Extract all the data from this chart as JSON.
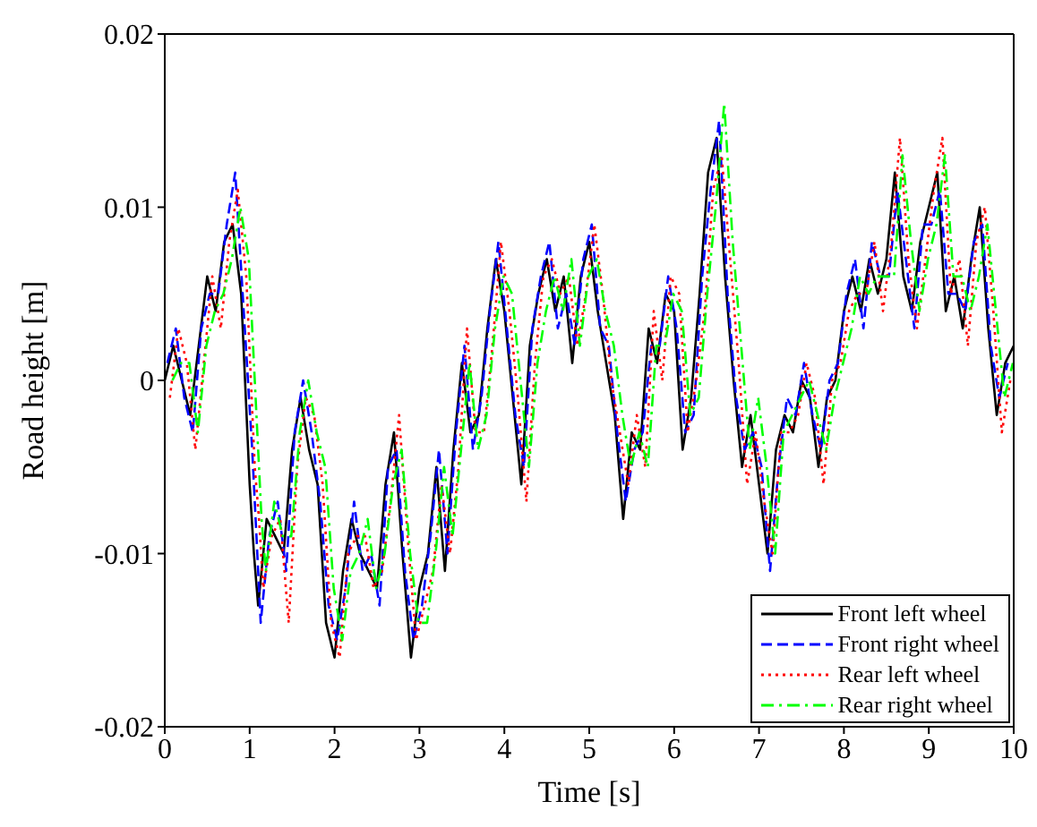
{
  "chart_data": {
    "type": "line",
    "xlabel": "Time [s]",
    "ylabel": "Road height [m]",
    "xlim": [
      0,
      10
    ],
    "xticks": [
      0,
      1,
      2,
      3,
      4,
      5,
      6,
      7,
      8,
      9,
      10
    ],
    "ylim": [
      -0.02,
      0.02
    ],
    "yticks": [
      -0.02,
      -0.01,
      0,
      0.01,
      0.02
    ],
    "grid": false,
    "legend": "bottom right",
    "marker": "none",
    "series": [
      {
        "name": "Front left wheel",
        "color": "#000000",
        "line_style": "solid",
        "x": [
          0,
          0.1,
          0.2,
          0.3,
          0.4,
          0.5,
          0.6,
          0.7,
          0.8,
          0.9,
          1.0,
          1.05,
          1.1,
          1.2,
          1.3,
          1.4,
          1.5,
          1.6,
          1.7,
          1.8,
          1.9,
          2.0,
          2.1,
          2.2,
          2.3,
          2.4,
          2.5,
          2.6,
          2.7,
          2.8,
          2.9,
          3.0,
          3.1,
          3.2,
          3.3,
          3.4,
          3.5,
          3.6,
          3.7,
          3.8,
          3.9,
          4.0,
          4.1,
          4.2,
          4.3,
          4.4,
          4.5,
          4.6,
          4.7,
          4.8,
          4.9,
          5.0,
          5.1,
          5.2,
          5.3,
          5.4,
          5.5,
          5.6,
          5.7,
          5.8,
          5.9,
          6.0,
          6.1,
          6.2,
          6.3,
          6.4,
          6.5,
          6.6,
          6.7,
          6.8,
          6.9,
          7.0,
          7.1,
          7.2,
          7.3,
          7.4,
          7.5,
          7.6,
          7.7,
          7.8,
          7.9,
          8.0,
          8.1,
          8.2,
          8.3,
          8.4,
          8.5,
          8.6,
          8.7,
          8.8,
          8.9,
          9.0,
          9.1,
          9.2,
          9.3,
          9.4,
          9.5,
          9.6,
          9.7,
          9.8,
          9.9,
          10.0
        ],
        "values": [
          0,
          0.002,
          0,
          -0.002,
          0.002,
          0.006,
          0.004,
          0.008,
          0.009,
          0.005,
          -0.006,
          -0.01,
          -0.013,
          -0.008,
          -0.009,
          -0.01,
          -0.004,
          -0.001,
          -0.004,
          -0.006,
          -0.014,
          -0.016,
          -0.011,
          -0.008,
          -0.01,
          -0.011,
          -0.012,
          -0.006,
          -0.003,
          -0.01,
          -0.016,
          -0.012,
          -0.01,
          -0.005,
          -0.011,
          -0.004,
          0.001,
          -0.003,
          -0.002,
          0.003,
          0.007,
          0.004,
          -0.001,
          -0.006,
          0.002,
          0.005,
          0.007,
          0.004,
          0.006,
          0.001,
          0.006,
          0.008,
          0.004,
          0.001,
          -0.002,
          -0.008,
          -0.003,
          -0.004,
          0.003,
          0.001,
          0.005,
          0.004,
          -0.004,
          -0.001,
          0.005,
          0.012,
          0.014,
          0.006,
          0,
          -0.005,
          -0.002,
          -0.006,
          -0.01,
          -0.004,
          -0.002,
          -0.003,
          0,
          -0.001,
          -0.005,
          -0.001,
          0,
          0.004,
          0.006,
          0.004,
          0.007,
          0.005,
          0.007,
          0.012,
          0.006,
          0.004,
          0.008,
          0.01,
          0.012,
          0.004,
          0.006,
          0.003,
          0.007,
          0.01,
          0.003,
          -0.002,
          0.001,
          0.002
        ]
      },
      {
        "name": "Front right wheel",
        "color": "#0000ff",
        "line_style": "dashed",
        "x": [
          0.03,
          0.13,
          0.23,
          0.33,
          0.43,
          0.53,
          0.63,
          0.73,
          0.83,
          0.93,
          1.03,
          1.08,
          1.13,
          1.23,
          1.33,
          1.43,
          1.53,
          1.63,
          1.73,
          1.83,
          1.93,
          2.03,
          2.13,
          2.23,
          2.33,
          2.43,
          2.53,
          2.63,
          2.73,
          2.83,
          2.93,
          3.03,
          3.13,
          3.23,
          3.33,
          3.43,
          3.53,
          3.63,
          3.73,
          3.83,
          3.93,
          4.03,
          4.13,
          4.23,
          4.33,
          4.43,
          4.53,
          4.63,
          4.73,
          4.83,
          4.93,
          5.03,
          5.13,
          5.23,
          5.33,
          5.43,
          5.53,
          5.63,
          5.73,
          5.83,
          5.93,
          6.03,
          6.13,
          6.23,
          6.33,
          6.43,
          6.53,
          6.63,
          6.73,
          6.83,
          6.93,
          7.03,
          7.13,
          7.23,
          7.33,
          7.43,
          7.53,
          7.63,
          7.73,
          7.83,
          7.93,
          8.03,
          8.13,
          8.23,
          8.33,
          8.43,
          8.53,
          8.63,
          8.73,
          8.83,
          8.93,
          9.03,
          9.13,
          9.23,
          9.33,
          9.43,
          9.53,
          9.63,
          9.73,
          9.83,
          9.93
        ],
        "values": [
          0.001,
          0.003,
          -0.001,
          -0.003,
          0.003,
          0.005,
          0.005,
          0.009,
          0.012,
          0.004,
          -0.004,
          -0.009,
          -0.014,
          -0.009,
          -0.007,
          -0.011,
          -0.003,
          0.0,
          -0.003,
          -0.007,
          -0.013,
          -0.015,
          -0.012,
          -0.007,
          -0.011,
          -0.01,
          -0.013,
          -0.005,
          -0.004,
          -0.011,
          -0.015,
          -0.013,
          -0.009,
          -0.004,
          -0.01,
          -0.003,
          0.002,
          -0.004,
          -0.001,
          0.004,
          0.008,
          0.003,
          -0.002,
          -0.005,
          0.003,
          0.006,
          0.008,
          0.003,
          0.005,
          0.002,
          0.007,
          0.009,
          0.003,
          0.002,
          -0.003,
          -0.007,
          -0.004,
          -0.003,
          0.002,
          0.002,
          0.006,
          0.003,
          -0.003,
          -0.002,
          0.006,
          0.011,
          0.015,
          0.005,
          -0.001,
          -0.004,
          -0.003,
          -0.005,
          -0.011,
          -0.005,
          -0.001,
          -0.002,
          0.001,
          -0.002,
          -0.004,
          0,
          0.001,
          0.005,
          0.007,
          0.003,
          0.008,
          0.006,
          0.006,
          0.011,
          0.007,
          0.003,
          0.009,
          0.009,
          0.011,
          0.005,
          0.005,
          0.004,
          0.008,
          0.009,
          0.002,
          -0.001,
          0.001
        ]
      },
      {
        "name": "Rear left wheel",
        "color": "#ff0000",
        "line_style": "dotted",
        "x": [
          0.06,
          0.16,
          0.26,
          0.36,
          0.46,
          0.56,
          0.66,
          0.76,
          0.86,
          0.96,
          1.06,
          1.11,
          1.16,
          1.26,
          1.36,
          1.46,
          1.56,
          1.66,
          1.76,
          1.86,
          1.96,
          2.06,
          2.16,
          2.26,
          2.36,
          2.46,
          2.56,
          2.66,
          2.76,
          2.86,
          2.96,
          3.06,
          3.16,
          3.26,
          3.36,
          3.46,
          3.56,
          3.66,
          3.76,
          3.86,
          3.96,
          4.06,
          4.16,
          4.26,
          4.36,
          4.46,
          4.56,
          4.66,
          4.76,
          4.86,
          4.96,
          5.06,
          5.16,
          5.26,
          5.36,
          5.46,
          5.56,
          5.66,
          5.76,
          5.86,
          5.96,
          6.06,
          6.16,
          6.26,
          6.36,
          6.46,
          6.56,
          6.66,
          6.76,
          6.86,
          6.96,
          7.06,
          7.16,
          7.26,
          7.36,
          7.46,
          7.56,
          7.66,
          7.76,
          7.86,
          7.96,
          8.06,
          8.16,
          8.26,
          8.36,
          8.46,
          8.56,
          8.66,
          8.76,
          8.86,
          8.96,
          9.06,
          9.16,
          9.26,
          9.36,
          9.46,
          9.56,
          9.66,
          9.76,
          9.86,
          9.96
        ],
        "values": [
          -0.001,
          0.003,
          0.001,
          -0.004,
          0.001,
          0.006,
          0.003,
          0.008,
          0.011,
          0.006,
          -0.005,
          -0.008,
          -0.012,
          -0.009,
          -0.008,
          -0.014,
          -0.005,
          -0.001,
          -0.002,
          -0.006,
          -0.014,
          -0.016,
          -0.01,
          -0.009,
          -0.009,
          -0.012,
          -0.011,
          -0.007,
          -0.002,
          -0.009,
          -0.015,
          -0.013,
          -0.011,
          -0.006,
          -0.01,
          -0.005,
          0.003,
          -0.003,
          -0.003,
          0.002,
          0.008,
          0.004,
          -0.001,
          -0.007,
          0.001,
          0.006,
          0.007,
          0.005,
          0.006,
          0.002,
          0.005,
          0.009,
          0.005,
          0.0,
          -0.003,
          -0.006,
          -0.002,
          -0.005,
          0.004,
          0.0,
          0.006,
          0.005,
          -0.003,
          0.0,
          0.004,
          0.011,
          0.013,
          0.007,
          0.001,
          -0.006,
          -0.003,
          -0.007,
          -0.01,
          -0.003,
          -0.003,
          -0.002,
          0.001,
          -0.001,
          -0.006,
          0.0,
          0.001,
          0.004,
          0.005,
          0.005,
          0.008,
          0.004,
          0.008,
          0.014,
          0.007,
          0.003,
          0.007,
          0.011,
          0.014,
          0.005,
          0.007,
          0.002,
          0.008,
          0.01,
          0.004,
          -0.003,
          0.0
        ]
      },
      {
        "name": "Rear right wheel",
        "color": "#00ff00",
        "line_style": "dashdot",
        "x": [
          0.09,
          0.19,
          0.29,
          0.39,
          0.49,
          0.59,
          0.69,
          0.79,
          0.89,
          0.99,
          1.09,
          1.14,
          1.19,
          1.29,
          1.39,
          1.49,
          1.59,
          1.69,
          1.79,
          1.89,
          1.99,
          2.09,
          2.19,
          2.29,
          2.39,
          2.49,
          2.59,
          2.69,
          2.79,
          2.89,
          2.99,
          3.09,
          3.19,
          3.29,
          3.39,
          3.49,
          3.59,
          3.69,
          3.79,
          3.89,
          3.99,
          4.09,
          4.19,
          4.29,
          4.39,
          4.49,
          4.59,
          4.69,
          4.79,
          4.89,
          4.99,
          5.09,
          5.19,
          5.29,
          5.39,
          5.49,
          5.59,
          5.69,
          5.79,
          5.89,
          5.99,
          6.09,
          6.19,
          6.29,
          6.39,
          6.49,
          6.59,
          6.69,
          6.79,
          6.89,
          6.99,
          7.09,
          7.19,
          7.29,
          7.39,
          7.49,
          7.59,
          7.69,
          7.79,
          7.89,
          7.99,
          8.09,
          8.19,
          8.29,
          8.39,
          8.49,
          8.59,
          8.69,
          8.79,
          8.89,
          8.99,
          9.09,
          9.19,
          9.29,
          9.39,
          9.49,
          9.59,
          9.69,
          9.79,
          9.89,
          9.99
        ],
        "values": [
          0.0,
          0.001,
          0.001,
          -0.003,
          0.002,
          0.004,
          0.005,
          0.007,
          0.01,
          0.007,
          -0.003,
          -0.008,
          -0.011,
          -0.007,
          -0.009,
          -0.009,
          -0.003,
          0.0,
          -0.003,
          -0.005,
          -0.012,
          -0.015,
          -0.011,
          -0.01,
          -0.008,
          -0.012,
          -0.01,
          -0.006,
          -0.004,
          -0.01,
          -0.014,
          -0.014,
          -0.01,
          -0.005,
          -0.009,
          -0.004,
          0.001,
          -0.004,
          -0.002,
          0.003,
          0.006,
          0.005,
          0.0,
          -0.005,
          0.001,
          0.004,
          0.006,
          0.004,
          0.007,
          0.002,
          0.006,
          0.007,
          0.004,
          0.002,
          -0.002,
          -0.005,
          -0.003,
          -0.005,
          0.002,
          0.002,
          0.005,
          0.004,
          -0.002,
          -0.001,
          0.005,
          0.01,
          0.016,
          0.008,
          0.002,
          -0.004,
          -0.001,
          -0.005,
          -0.01,
          -0.003,
          -0.002,
          -0.001,
          0.0,
          -0.002,
          -0.004,
          -0.001,
          0.001,
          0.003,
          0.006,
          0.005,
          0.006,
          0.006,
          0.006,
          0.013,
          0.008,
          0.004,
          0.007,
          0.009,
          0.013,
          0.006,
          0.006,
          0.004,
          0.006,
          0.009,
          0.004,
          -0.001,
          0.001
        ]
      }
    ]
  }
}
